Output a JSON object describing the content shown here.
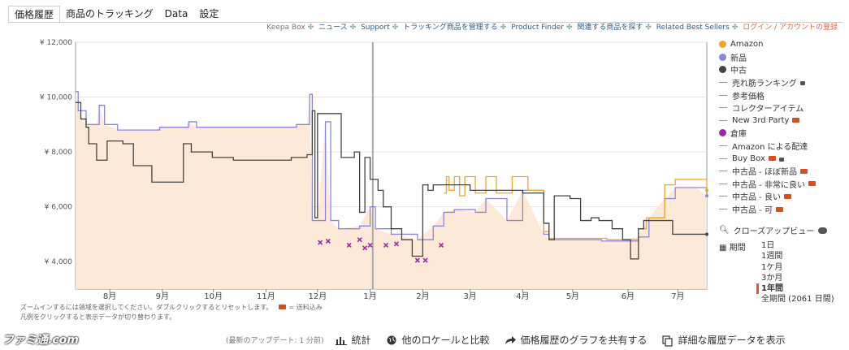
{
  "tabs": [
    "価格履歴",
    "商品のトラッキング",
    "Data",
    "設定"
  ],
  "topnav": [
    "Keepa Box",
    "ニュース",
    "Support",
    "トラッキング商品を管理する",
    "Product Finder",
    "関連する商品を探す",
    "Related Best Sellers",
    "ログイン / アカウントの登録"
  ],
  "legend": [
    {
      "label": "Amazon",
      "kind": "dot",
      "color": "#f5a623"
    },
    {
      "label": "新品",
      "kind": "dot",
      "color": "#8a86e0"
    },
    {
      "label": "中古",
      "kind": "dot",
      "color": "#444444"
    },
    {
      "label": "売れ筋ランキング",
      "kind": "line",
      "extra": "lock"
    },
    {
      "label": "参考価格",
      "kind": "line"
    },
    {
      "label": "コレクターアイテム",
      "kind": "line"
    },
    {
      "label": "New 3rd Party",
      "kind": "line",
      "extra": "truck"
    },
    {
      "label": "倉庫",
      "kind": "dot",
      "color": "#9b2aa3"
    },
    {
      "label": "Amazon による配達",
      "kind": "line"
    },
    {
      "label": "Buy Box",
      "kind": "line",
      "extra": "trucklock"
    },
    {
      "label": "中古品 - ほぼ新品",
      "kind": "line",
      "extra": "truck"
    },
    {
      "label": "中古品 - 非常に良い",
      "kind": "line",
      "extra": "truck"
    },
    {
      "label": "中古品 - 良い",
      "kind": "line",
      "extra": "truck"
    },
    {
      "label": "中古品 - 可",
      "kind": "line",
      "extra": "truck"
    }
  ],
  "closeup": "クローズアップビュー",
  "period": {
    "label": "期間",
    "options": [
      "1日",
      "1週間",
      "1ケ月",
      "3か月",
      "1年間",
      "全期間 (2061 日間)"
    ],
    "selected": 4
  },
  "notes": {
    "line1": "ズームインするには領域を選択してください。ダブルクリックするとリセットします。",
    "shipping": "= 送料込み",
    "line2": "凡例をクリックすると表示データが切り替わります。"
  },
  "bottom": {
    "update": "(最新のアップデート: 1 分前)",
    "stats": "統計",
    "compare": "他のロケールと比較",
    "share": "価格履歴のグラフを共有する",
    "details": "詳細な履歴データを表示"
  },
  "watermark": "ファミ通.com",
  "chart_data": {
    "type": "line",
    "ylim": [
      3000,
      12000
    ],
    "yticks": [
      "¥ 4,000",
      "¥ 6,000",
      "¥ 8,000",
      "¥ 10,000",
      "¥ 12,000"
    ],
    "ytick_values": [
      4000,
      6000,
      8000,
      10000,
      12000
    ],
    "xlim": [
      0,
      12
    ],
    "xticks": [
      {
        "label": "8月",
        "x": 0.65
      },
      {
        "label": "9月",
        "x": 1.65
      },
      {
        "label": "10月",
        "x": 2.62
      },
      {
        "label": "11月",
        "x": 3.62
      },
      {
        "label": "12月",
        "x": 4.6
      },
      {
        "label": "1月",
        "x": 5.6
      },
      {
        "label": "2月",
        "x": 6.6
      },
      {
        "label": "3月",
        "x": 7.5
      },
      {
        "label": "4月",
        "x": 8.5
      },
      {
        "label": "5月",
        "x": 9.45
      },
      {
        "label": "6月",
        "x": 10.5
      },
      {
        "label": "7月",
        "x": 11.45
      }
    ],
    "today_x": 5.65,
    "series": [
      {
        "name": "新品",
        "color": "#8a86e0",
        "values": [
          [
            0,
            10200
          ],
          [
            0.05,
            9500
          ],
          [
            0.2,
            9000
          ],
          [
            0.4,
            9000
          ],
          [
            0.45,
            9700
          ],
          [
            0.55,
            9000
          ],
          [
            0.8,
            8800
          ],
          [
            1.5,
            8800
          ],
          [
            1.6,
            8900
          ],
          [
            2.1,
            8900
          ],
          [
            2.15,
            9100
          ],
          [
            2.3,
            8900
          ],
          [
            4.1,
            8900
          ],
          [
            4.2,
            9000
          ],
          [
            4.4,
            9000
          ],
          [
            4.45,
            10100
          ],
          [
            4.5,
            5500
          ],
          [
            4.6,
            5500
          ],
          [
            4.75,
            9100
          ],
          [
            4.85,
            5500
          ],
          [
            5.0,
            5200
          ],
          [
            5.4,
            5300
          ],
          [
            5.6,
            6000
          ],
          [
            5.7,
            5200
          ],
          [
            6.0,
            5000
          ],
          [
            6.5,
            4800
          ],
          [
            6.8,
            5300
          ],
          [
            7.0,
            5800
          ],
          [
            7.2,
            5900
          ],
          [
            7.6,
            5800
          ],
          [
            7.8,
            6300
          ],
          [
            8.2,
            5500
          ],
          [
            8.5,
            6600
          ],
          [
            8.9,
            5000
          ],
          [
            9.0,
            4800
          ],
          [
            9.9,
            4800
          ],
          [
            10.0,
            4750
          ],
          [
            10.7,
            4900
          ],
          [
            10.9,
            5600
          ],
          [
            11.2,
            6300
          ],
          [
            11.4,
            6700
          ],
          [
            11.8,
            6700
          ],
          [
            12.0,
            6400
          ]
        ]
      },
      {
        "name": "Amazon",
        "color": "#f5a623",
        "values": [
          [
            7.0,
            6500
          ],
          [
            7.05,
            7100
          ],
          [
            7.1,
            6600
          ],
          [
            7.2,
            7100
          ],
          [
            7.3,
            6400
          ],
          [
            7.4,
            7100
          ],
          [
            7.6,
            6500
          ],
          [
            7.8,
            7100
          ],
          [
            8.0,
            6500
          ],
          [
            8.3,
            7100
          ],
          [
            8.6,
            6600
          ],
          [
            8.9,
            5100
          ],
          [
            9.0,
            4850
          ],
          [
            9.9,
            4850
          ],
          [
            10.1,
            4800
          ],
          [
            10.7,
            5200
          ],
          [
            10.85,
            5600
          ],
          [
            11.1,
            5600
          ],
          [
            11.2,
            6800
          ],
          [
            11.4,
            7000
          ],
          [
            11.8,
            7000
          ],
          [
            12.0,
            6600
          ]
        ]
      },
      {
        "name": "中古",
        "color": "#444444",
        "values": [
          [
            0,
            9800
          ],
          [
            0.1,
            9200
          ],
          [
            0.2,
            8900
          ],
          [
            0.25,
            8300
          ],
          [
            0.35,
            8300
          ],
          [
            0.4,
            7700
          ],
          [
            0.55,
            7700
          ],
          [
            0.6,
            8400
          ],
          [
            0.9,
            8300
          ],
          [
            1.0,
            8300
          ],
          [
            1.1,
            7500
          ],
          [
            1.4,
            7500
          ],
          [
            1.45,
            6900
          ],
          [
            2.0,
            6900
          ],
          [
            2.05,
            8300
          ],
          [
            2.2,
            8000
          ],
          [
            2.6,
            7800
          ],
          [
            3.0,
            7700
          ],
          [
            3.4,
            7700
          ],
          [
            3.9,
            7700
          ],
          [
            4.1,
            7800
          ],
          [
            4.4,
            7900
          ],
          [
            4.5,
            9500
          ],
          [
            4.55,
            5600
          ],
          [
            4.6,
            9400
          ],
          [
            5.0,
            9400
          ],
          [
            5.05,
            7800
          ],
          [
            5.3,
            8000
          ],
          [
            5.4,
            5800
          ],
          [
            5.5,
            7800
          ],
          [
            5.6,
            7000
          ],
          [
            5.75,
            6600
          ],
          [
            5.85,
            6000
          ],
          [
            6.0,
            5200
          ],
          [
            6.2,
            4800
          ],
          [
            6.4,
            4200
          ],
          [
            6.6,
            6800
          ],
          [
            6.7,
            6600
          ],
          [
            6.8,
            6800
          ],
          [
            7.3,
            6800
          ],
          [
            7.5,
            6600
          ],
          [
            8.2,
            6600
          ],
          [
            8.5,
            6500
          ],
          [
            8.9,
            5400
          ],
          [
            9.0,
            4800
          ],
          [
            9.1,
            6400
          ],
          [
            9.3,
            6400
          ],
          [
            9.4,
            6300
          ],
          [
            9.6,
            5500
          ],
          [
            9.8,
            5600
          ],
          [
            9.95,
            5500
          ],
          [
            10.2,
            5200
          ],
          [
            10.4,
            4800
          ],
          [
            10.55,
            4100
          ],
          [
            10.7,
            5200
          ],
          [
            10.8,
            5500
          ],
          [
            11.2,
            5500
          ],
          [
            11.35,
            5000
          ],
          [
            12.0,
            5000
          ]
        ]
      }
    ],
    "warehouse_points": [
      [
        4.65,
        4700
      ],
      [
        4.8,
        4750
      ],
      [
        5.2,
        4600
      ],
      [
        5.4,
        4800
      ],
      [
        5.5,
        4500
      ],
      [
        5.6,
        4600
      ],
      [
        5.9,
        4600
      ],
      [
        6.1,
        4650
      ],
      [
        6.5,
        4050
      ],
      [
        6.65,
        4050
      ],
      [
        6.95,
        4600
      ]
    ]
  }
}
